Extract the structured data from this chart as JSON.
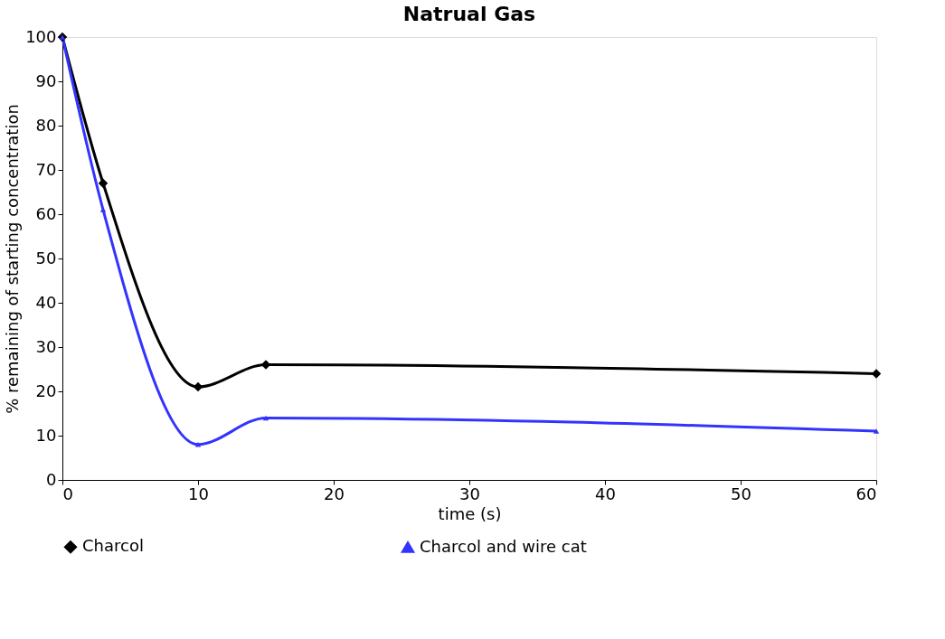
{
  "chart_data": {
    "type": "line",
    "title": "Natrual Gas",
    "xlabel": "time (s)",
    "ylabel": "% remaining of starting concentration",
    "x": [
      0,
      3,
      10,
      15,
      60
    ],
    "series": [
      {
        "name": "Charcol",
        "color": "#000000",
        "marker": "diamond",
        "values": [
          100,
          67,
          21,
          26,
          24
        ]
      },
      {
        "name": "Charcol and wire cat",
        "color": "#3333ff",
        "marker": "triangle",
        "values": [
          100,
          61,
          8,
          14,
          11
        ]
      }
    ],
    "xlim": [
      0,
      60
    ],
    "xticks": [
      0,
      10,
      20,
      30,
      40,
      50,
      60
    ],
    "ylim": [
      0,
      100
    ],
    "yticks": [
      0,
      10,
      20,
      30,
      40,
      50,
      60,
      70,
      80,
      90,
      100
    ],
    "grid": false,
    "legend": "bottom"
  }
}
